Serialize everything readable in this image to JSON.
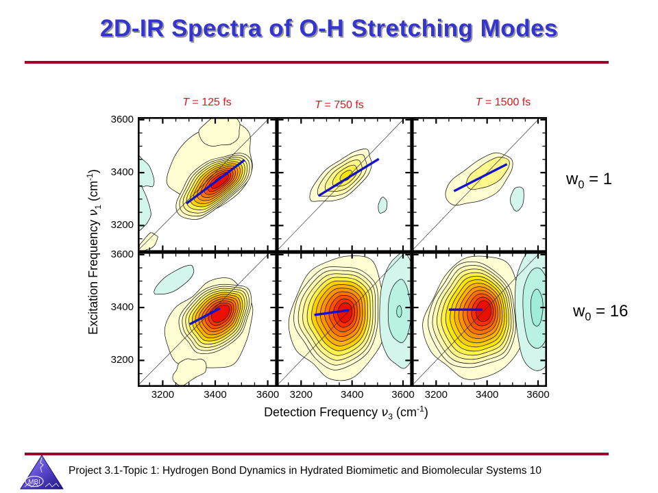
{
  "slide": {
    "title": "2D-IR Spectra of O-H Stretching Modes",
    "title_color": "#3434CE",
    "rule_color": "#A00028",
    "footer": {
      "text": "Project 3.1-Topic 1: Hydrogen Bond Dynamics in Hydrated Biomimetic and Biomolecular Systems 10",
      "logo_text": "MBI"
    }
  },
  "chart_data": {
    "type": "contour-grid",
    "rows": 2,
    "cols": 3,
    "col_title_color": "#E6121A",
    "col_titles": [
      {
        "t": "T",
        "rest": " = 125 fs"
      },
      {
        "t": "T",
        "rest": " = 750 fs"
      },
      {
        "t": "T",
        "rest": " = 1500 fs"
      }
    ],
    "row_labels": [
      {
        "base": "w",
        "sub": "0",
        "rest": " = 1"
      },
      {
        "base": "w",
        "sub": "0",
        "rest": " = 16"
      }
    ],
    "xlabel": {
      "pre": "Detection Frequency ",
      "nu": "ν",
      "sub": "3",
      "unit": " (cm",
      "sup": "-1",
      "close": ")"
    },
    "ylabel": {
      "pre": "Excitation Frequency ",
      "nu": "ν",
      "sub": "1",
      "unit": " (cm",
      "sup": "-1",
      "close": ")"
    },
    "x_ticks": [
      "3200",
      "3400",
      "3600"
    ],
    "y_ticks": [
      "3600",
      "3400",
      "3200"
    ],
    "x_tick_values": [
      3200,
      3400,
      3600
    ],
    "y_tick_values": [
      3600,
      3400,
      3200
    ],
    "minor_step": 50,
    "xlim": [
      3105,
      3635
    ],
    "ylim": [
      3100,
      3610
    ],
    "diagonal_color": "#333333",
    "cls_line_color": "#1212CC",
    "positive_colors": [
      "#FFFDD2",
      "#FFFAB0",
      "#FFF68C",
      "#FFF24D",
      "#FFE800",
      "#FFD000",
      "#FFB300",
      "#FF9400",
      "#FF7300",
      "#FF5200",
      "#FA2E00",
      "#EB0F00"
    ],
    "negative_colors": [
      "#D2F6EC",
      "#B9F1E3",
      "#9FEDD8"
    ],
    "panels": [
      {
        "id": "r0c0",
        "row": 0,
        "col": 0,
        "t_fs": 125,
        "w0": 1,
        "peak": {
          "levels": 11,
          "cx": [
            3393,
            3418
          ],
          "cy": [
            3352,
            3367
          ],
          "rx": [
            172,
            40
          ],
          "ry": [
            82,
            14
          ],
          "angle": 38,
          "wobble": [
            0.1,
            0.03
          ],
          "seed": 3,
          "color_indices": [
            0,
            1,
            2,
            3,
            5,
            6,
            7,
            8,
            9,
            10,
            11
          ]
        },
        "base": [
          {
            "cx": 3390,
            "cy": 3425,
            "rx": 175,
            "ry": 140,
            "angle": 42,
            "wobble": 0.13,
            "seed": 7
          },
          {
            "cx": 3420,
            "cy": 3560,
            "rx": 80,
            "ry": 60,
            "angle": 20,
            "wobble": 0.12,
            "seed": 11
          },
          {
            "cx": 3145,
            "cy": 3135,
            "rx": 45,
            "ry": 22,
            "angle": 45,
            "wobble": 0.18,
            "seed": 5
          }
        ],
        "negatives": [
          {
            "levels": 1,
            "cx": [
              3098
            ],
            "cy": [
              3280
            ],
            "rx": [
              48
            ],
            "ry": [
              100
            ],
            "angle": 12,
            "wobble": 0.12,
            "seed": 9
          },
          {
            "levels": 1,
            "cx": [
              3112
            ],
            "cy": [
              3408
            ],
            "rx": [
              40
            ],
            "ry": [
              75
            ],
            "angle": 32,
            "wobble": 0.15,
            "seed": 4
          }
        ],
        "cls": {
          "x1": 3290,
          "y1": 3283,
          "x2": 3512,
          "y2": 3448
        }
      },
      {
        "id": "r0c1",
        "row": 0,
        "col": 1,
        "t_fs": 750,
        "w0": 1,
        "peak": {
          "levels": 5,
          "cx": [
            3362,
            3377
          ],
          "cy": [
            3382,
            3388
          ],
          "rx": [
            142,
            28
          ],
          "ry": [
            64,
            15
          ],
          "angle": 36,
          "wobble": [
            0.11,
            0.04
          ],
          "seed": 6,
          "color_indices": [
            0,
            1,
            2,
            3,
            4
          ]
        },
        "base": [],
        "negatives": [
          {
            "levels": 1,
            "cx": [
              3520
            ],
            "cy": [
              3276
            ],
            "rx": [
              17
            ],
            "ry": [
              30
            ],
            "angle": -10,
            "wobble": 0.1,
            "seed": 2
          },
          {
            "levels": 1,
            "cx": [
              3102
            ],
            "cy": [
              3385
            ],
            "rx": [
              9
            ],
            "ry": [
              28
            ],
            "angle": 0,
            "wobble": 0.1,
            "seed": 8
          }
        ],
        "cls": {
          "x1": 3268,
          "y1": 3312,
          "x2": 3505,
          "y2": 3452
        }
      },
      {
        "id": "r0c2",
        "row": 0,
        "col": 2,
        "t_fs": 1500,
        "w0": 1,
        "peak": {
          "levels": 2,
          "cx": [
            3372,
            3405
          ],
          "cy": [
            3372,
            3396
          ],
          "rx": [
            148,
            95
          ],
          "ry": [
            70,
            42
          ],
          "angle": 31,
          "wobble": [
            0.1,
            0.07
          ],
          "seed": 12,
          "color_indices": [
            0,
            2
          ]
        },
        "base": [],
        "negatives": [
          {
            "levels": 1,
            "cx": [
              3519
            ],
            "cy": [
              3302
            ],
            "rx": [
              26
            ],
            "ry": [
              46
            ],
            "angle": -8,
            "wobble": 0.08,
            "seed": 5
          }
        ],
        "cls": {
          "x1": 3270,
          "y1": 3330,
          "x2": 3478,
          "y2": 3432
        }
      },
      {
        "id": "r1c0",
        "row": 1,
        "col": 0,
        "t_fs": 125,
        "w0": 16,
        "peak": {
          "levels": 11,
          "cx": [
            3402,
            3420
          ],
          "cy": [
            3362,
            3377
          ],
          "rx": [
            152,
            40
          ],
          "ry": [
            112,
            26
          ],
          "angle": 42,
          "wobble": [
            0.09,
            0.03
          ],
          "seed": 8,
          "color_indices": [
            0,
            1,
            2,
            3,
            5,
            6,
            7,
            8,
            9,
            10,
            11
          ]
        },
        "base": [
          {
            "cx": 3382,
            "cy": 3330,
            "rx": 185,
            "ry": 148,
            "angle": 47,
            "wobble": 0.13,
            "seed": 13
          },
          {
            "cx": 3300,
            "cy": 3160,
            "rx": 70,
            "ry": 40,
            "angle": 30,
            "wobble": 0.2,
            "seed": 3
          }
        ],
        "negatives": [
          {
            "levels": 1,
            "cx": [
              3246
            ],
            "cy": [
              3502
            ],
            "rx": [
              88
            ],
            "ry": [
              32
            ],
            "angle": 33,
            "wobble": 0.07,
            "seed": 6
          }
        ],
        "cls": {
          "x1": 3303,
          "y1": 3337,
          "x2": 3418,
          "y2": 3397
        }
      },
      {
        "id": "r1c1",
        "row": 1,
        "col": 1,
        "t_fs": 750,
        "w0": 16,
        "peak": {
          "levels": 11,
          "cx": [
            3345,
            3372
          ],
          "cy": [
            3368,
            3381
          ],
          "rx": [
            195,
            38
          ],
          "ry": [
            165,
            28
          ],
          "angle": 85,
          "wobble": [
            0.08,
            0.03
          ],
          "seed": 10,
          "color_indices": [
            0,
            1,
            2,
            3,
            5,
            6,
            7,
            8,
            9,
            10,
            11
          ]
        },
        "base": [
          {
            "cx": 3350,
            "cy": 3365,
            "rx": 235,
            "ry": 185,
            "angle": 80,
            "wobble": 0.1,
            "seed": 9
          }
        ],
        "negatives": [
          {
            "levels": 3,
            "cx": [
              3588,
              3585
            ],
            "cy": [
              3385,
              3385
            ],
            "rx": [
              80,
              10
            ],
            "ry": [
              215,
              22
            ],
            "angle": 0,
            "wobble": [
              0.06,
              0.04
            ],
            "seed": 4
          }
        ],
        "cls": {
          "x1": 3252,
          "y1": 3372,
          "x2": 3388,
          "y2": 3390
        }
      },
      {
        "id": "r1c2",
        "row": 1,
        "col": 2,
        "t_fs": 1500,
        "w0": 16,
        "peak": {
          "levels": 12,
          "cx": [
            3345,
            3386
          ],
          "cy": [
            3365,
            3386
          ],
          "rx": [
            200,
            40
          ],
          "ry": [
            170,
            30
          ],
          "angle": 85,
          "wobble": [
            0.08,
            0.02
          ],
          "seed": 14
        },
        "base": [
          {
            "cx": 3355,
            "cy": 3360,
            "rx": 235,
            "ry": 190,
            "angle": 80,
            "wobble": 0.1,
            "seed": 2
          }
        ],
        "negatives": [
          {
            "levels": 3,
            "cx": [
              3598,
              3595
            ],
            "cy": [
              3398,
              3400
            ],
            "rx": [
              90,
              24
            ],
            "ry": [
              235,
              70
            ],
            "angle": 0,
            "wobble": [
              0.05,
              0.04
            ],
            "seed": 7
          }
        ],
        "cls": {
          "x1": 3250,
          "y1": 3392,
          "x2": 3382,
          "y2": 3392
        }
      }
    ]
  }
}
